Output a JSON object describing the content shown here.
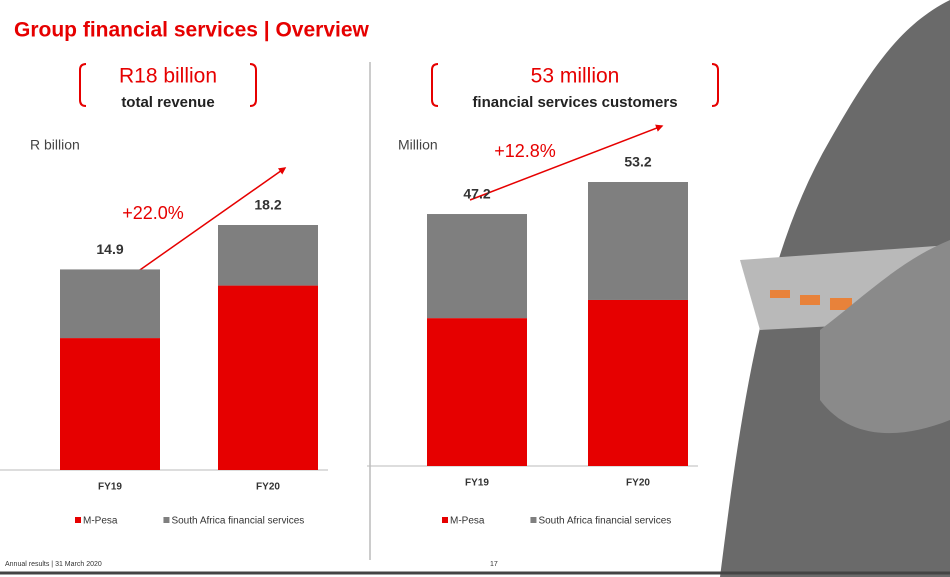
{
  "header": {
    "title": "Group financial services | Overview"
  },
  "chart_data": [
    {
      "type": "bar",
      "stacked": true,
      "headline": "R18 billion",
      "headline_sub": "total revenue",
      "unit_label": "R billion",
      "growth": "+22.0%",
      "categories": [
        "FY19",
        "FY20"
      ],
      "totals": [
        14.9,
        18.2
      ],
      "series": [
        {
          "name": "M-Pesa",
          "color": "#e60000",
          "values": [
            9.8,
            13.7
          ]
        },
        {
          "name": "South Africa financial services",
          "color": "#7f7f7f",
          "values": [
            5.1,
            4.5
          ]
        }
      ]
    },
    {
      "type": "bar",
      "stacked": true,
      "headline": "53 million",
      "headline_sub": "financial services customers",
      "unit_label": "Million",
      "growth": "+12.8%",
      "categories": [
        "FY19",
        "FY20"
      ],
      "totals": [
        47.2,
        53.2
      ],
      "series": [
        {
          "name": "M-Pesa",
          "color": "#e60000",
          "values": [
            27.7,
            31.1
          ]
        },
        {
          "name": "South Africa financial services",
          "color": "#7f7f7f",
          "values": [
            19.5,
            22.1
          ]
        }
      ]
    }
  ],
  "footer": {
    "note": "Annual results | 31 March 2020",
    "page": "17"
  }
}
